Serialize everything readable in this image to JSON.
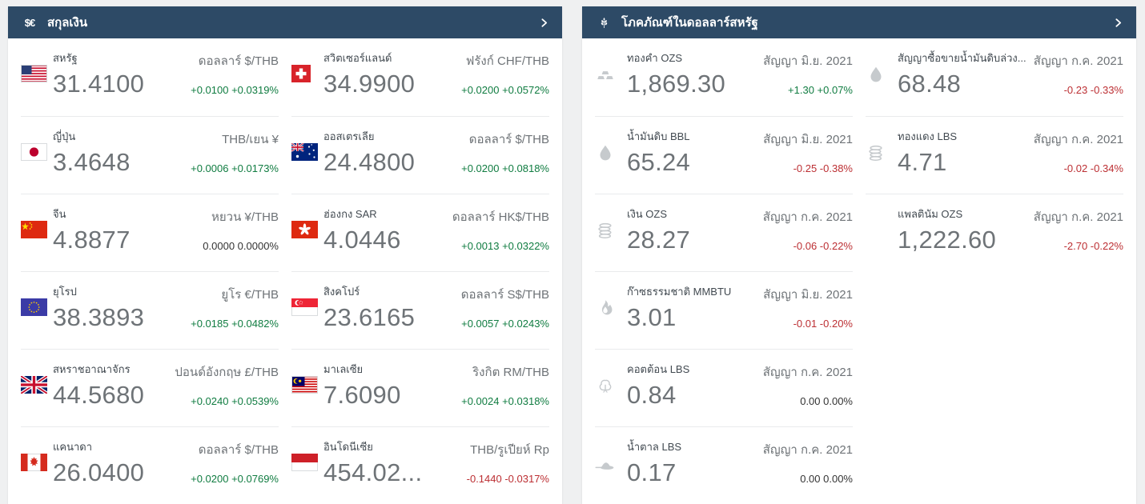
{
  "colors": {
    "header_bg": "#2d4a66",
    "panel_bg": "#ffffff",
    "page_bg": "#eff0f1",
    "positive": "#107c41",
    "negative": "#bc2f33",
    "neutral": "#333333",
    "price_text": "#6e7377"
  },
  "panels": [
    {
      "id": "currencies",
      "title": "สกุลเงิน",
      "icon": "currency-symbols-icon",
      "icon_text": "$€",
      "chevron_icon": "chevron-right-icon",
      "cell_name": "currency-card",
      "sub_name": "pair-label",
      "items": [
        {
          "flag": "us",
          "name": "สหรัฐ",
          "price": "31.4100",
          "sub": "ดอลลาร์ $/THB",
          "change": "+0.0100 +0.0319%",
          "direction": "up"
        },
        {
          "flag": "ch",
          "name": "สวิตเซอร์แลนด์",
          "price": "34.9900",
          "sub": "ฟรังก์ CHF/THB",
          "change": "+0.0200 +0.0572%",
          "direction": "up"
        },
        {
          "flag": "jp",
          "name": "ญี่ปุ่น",
          "price": "3.4648",
          "sub": "THB/เยน ¥",
          "change": "+0.0006 +0.0173%",
          "direction": "up"
        },
        {
          "flag": "au",
          "name": "ออสเตรเลีย",
          "price": "24.4800",
          "sub": "ดอลลาร์ $/THB",
          "change": "+0.0200 +0.0818%",
          "direction": "up"
        },
        {
          "flag": "cn",
          "name": "จีน",
          "price": "4.8877",
          "sub": "หยวน ¥/THB",
          "change": "0.0000 0.0000%",
          "direction": "flat"
        },
        {
          "flag": "hk",
          "name": "ฮ่องกง SAR",
          "price": "4.0446",
          "sub": "ดอลลาร์ HK$/THB",
          "change": "+0.0013 +0.0322%",
          "direction": "up"
        },
        {
          "flag": "eu",
          "name": "ยุโรป",
          "price": "38.3893",
          "sub": "ยูโร €/THB",
          "change": "+0.0185 +0.0482%",
          "direction": "up"
        },
        {
          "flag": "sg",
          "name": "สิงคโปร์",
          "price": "23.6165",
          "sub": "ดอลลาร์ S$/THB",
          "change": "+0.0057 +0.0243%",
          "direction": "up"
        },
        {
          "flag": "gb",
          "name": "สหราชอาณาจักร",
          "price": "44.5680",
          "sub": "ปอนด์อังกฤษ £/THB",
          "change": "+0.0240 +0.0539%",
          "direction": "up"
        },
        {
          "flag": "my",
          "name": "มาเลเซีย",
          "price": "7.6090",
          "sub": "ริงกิต RM/THB",
          "change": "+0.0024 +0.0318%",
          "direction": "up"
        },
        {
          "flag": "ca",
          "name": "แคนาดา",
          "price": "26.0400",
          "sub": "ดอลลาร์ $/THB",
          "change": "+0.0200 +0.0769%",
          "direction": "up"
        },
        {
          "flag": "id",
          "name": "อินโดนีเซีย",
          "price": "454.02...",
          "sub": "THB/รูเปียห์ Rp",
          "change": "-0.1440 -0.0317%",
          "direction": "down"
        }
      ]
    },
    {
      "id": "commodities",
      "title": "โภคภัณฑ์ในดอลลาร์สหรัฐ",
      "icon": "wheat-icon",
      "icon_text": "",
      "chevron_icon": "chevron-right-icon",
      "cell_name": "commodity-card",
      "sub_name": "contract-label",
      "items": [
        {
          "icon": "gold-bars",
          "name": "ทองคำ OZS",
          "price": "1,869.30",
          "sub": "สัญญา มิ.ย. 2021",
          "change": "+1.30 +0.07%",
          "direction": "up"
        },
        {
          "icon": "oil-drop",
          "name": "สัญญาซื้อขายน้ำมันดิบล่วง...",
          "price": "68.48",
          "sub": "สัญญา ก.ค. 2021",
          "change": "-0.23 -0.33%",
          "direction": "down"
        },
        {
          "icon": "oil-drop",
          "name": "น้ำมันดิบ BBL",
          "price": "65.24",
          "sub": "สัญญา มิ.ย. 2021",
          "change": "-0.25 -0.38%",
          "direction": "down"
        },
        {
          "icon": "coins-stack",
          "name": "ทองแดง LBS",
          "price": "4.71",
          "sub": "สัญญา ก.ค. 2021",
          "change": "-0.02 -0.34%",
          "direction": "down"
        },
        {
          "icon": "coins-stack",
          "name": "เงิน OZS",
          "price": "28.27",
          "sub": "สัญญา ก.ค. 2021",
          "change": "-0.06 -0.22%",
          "direction": "down"
        },
        {
          "icon": null,
          "name": "แพลตินัม OZS",
          "price": "1,222.60",
          "sub": "สัญญา ก.ค. 2021",
          "change": "-2.70 -0.22%",
          "direction": "down"
        },
        {
          "icon": "flame",
          "name": "ก๊าซธรรมชาติ MMBTU",
          "price": "3.01",
          "sub": "สัญญา มิ.ย. 2021",
          "change": "-0.01 -0.20%",
          "direction": "down"
        },
        null,
        {
          "icon": "cotton-boll",
          "name": "คอตต้อน LBS",
          "price": "0.84",
          "sub": "สัญญา ก.ค. 2021",
          "change": "0.00 0.00%",
          "direction": "flat"
        },
        null,
        {
          "icon": "sugar-spoon",
          "name": "น้ำตาล LBS",
          "price": "0.17",
          "sub": "สัญญา ก.ค. 2021",
          "change": "0.00 0.00%",
          "direction": "flat"
        },
        null
      ]
    }
  ]
}
